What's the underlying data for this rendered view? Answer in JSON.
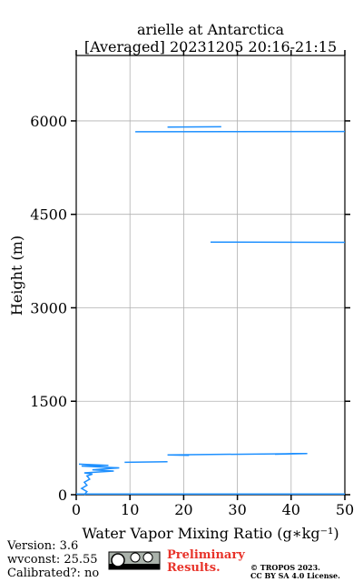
{
  "chart_data": {
    "type": "line",
    "title": "arielle at Antarctica",
    "subtitle": "[Averaged] 20231205 20:16-21:15",
    "x_label": "Water Vapor Mixing Ratio (g∗kg⁻¹)",
    "y_label": "Height (m)",
    "x": [
      50,
      0,
      null,
      1.5,
      2,
      1,
      2,
      1.5,
      2.5,
      2,
      3,
      1.5,
      7,
      3,
      8,
      1,
      6,
      0.5,
      null,
      9,
      17,
      null,
      21,
      17,
      43,
      37,
      null,
      25,
      50,
      null,
      11,
      50,
      null,
      17,
      27
    ],
    "series": [
      {
        "name": "wv",
        "color": "#1e90ff",
        "values": [
          10,
          10,
          null,
          0,
          50,
          100,
          150,
          200,
          250,
          300,
          330,
          350,
          380,
          400,
          430,
          460,
          470,
          490,
          null,
          520,
          530,
          null,
          630,
          640,
          660,
          650,
          null,
          4055,
          4050,
          null,
          5825,
          5830,
          null,
          5900,
          5905
        ]
      }
    ],
    "xlim": [
      0,
      50
    ],
    "xticks": [
      0,
      10,
      20,
      30,
      40,
      50
    ],
    "ylim": [
      0,
      7050
    ],
    "yticks": [
      0,
      1500,
      3000,
      4500,
      6000
    ],
    "grid": true,
    "footer": {
      "version": "Version: 3.6",
      "wvconst": "wvconst:  25.55",
      "calibrated": "Calibrated?: no",
      "preliminary": "Preliminary Results.",
      "copyright": "© TROPOS 2023.",
      "license": "CC BY SA 4.0 License."
    }
  }
}
